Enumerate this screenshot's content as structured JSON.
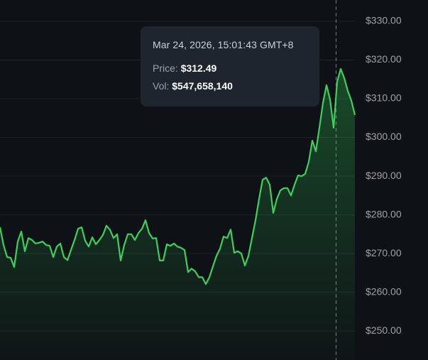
{
  "chart_data": {
    "type": "line",
    "values": [
      276.8,
      272.2,
      269.1,
      268.9,
      266.5,
      273.1,
      275.7,
      270.6,
      274.0,
      273.5,
      272.6,
      272.8,
      273.1,
      272.2,
      272.0,
      269.1,
      271.8,
      272.6,
      269.1,
      268.3,
      270.9,
      273.5,
      276.4,
      276.8,
      273.3,
      271.8,
      274.2,
      272.4,
      273.5,
      274.8,
      277.2,
      276.1,
      274.0,
      275.0,
      268.2,
      272.2,
      275.0,
      275.0,
      273.5,
      275.3,
      276.4,
      278.6,
      275.3,
      273.9,
      274.0,
      268.2,
      268.2,
      272.4,
      272.0,
      272.6,
      271.8,
      271.5,
      270.9,
      265.2,
      266.1,
      265.4,
      263.9,
      263.9,
      262.1,
      263.9,
      266.7,
      269.4,
      271.3,
      274.4,
      274.0,
      276.2,
      270.2,
      270.6,
      270.0,
      266.9,
      269.4,
      274.0,
      278.6,
      284.1,
      289.1,
      289.6,
      287.8,
      280.5,
      284.1,
      286.3,
      286.9,
      286.9,
      285.0,
      287.8,
      290.2,
      290.0,
      290.6,
      293.7,
      299.2,
      296.4,
      302.5,
      308.9,
      313.5,
      309.8,
      302.5,
      314.4,
      317.7,
      315.3,
      312.0,
      309.5,
      305.8
    ],
    "color": "#3ecf5c",
    "ylim": [
      242.5,
      335.5
    ],
    "yticks": [
      {
        "value": 250,
        "label": "$250.00"
      },
      {
        "value": 260,
        "label": "$260.00"
      },
      {
        "value": 270,
        "label": "$270.00"
      },
      {
        "value": 280,
        "label": "$280.00"
      },
      {
        "value": 290,
        "label": "$290.00"
      },
      {
        "value": 300,
        "label": "$300.00"
      },
      {
        "value": 310,
        "label": "$310.00"
      },
      {
        "value": 320,
        "label": "$320.00"
      },
      {
        "value": 330,
        "label": "$330.00"
      }
    ],
    "grid": true,
    "tooltip": {
      "date": "Mar 24, 2026, 15:01:43 GMT+8",
      "price_label": "Price:",
      "price": "$312.49",
      "vol_label": "Vol:",
      "vol": "$547,658,140"
    }
  }
}
